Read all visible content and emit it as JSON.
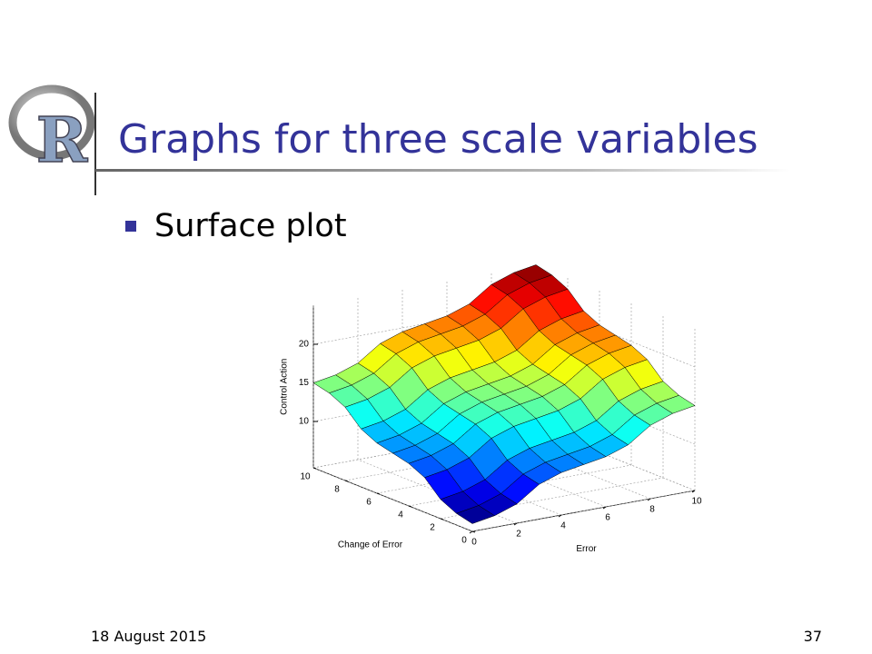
{
  "slide": {
    "logo": "R",
    "title": "Graphs for three scale variables",
    "bullets": [
      "Surface plot"
    ],
    "date": "18 August 2015",
    "page": "37"
  },
  "chart_data": {
    "type": "surface",
    "xlabel": "Error",
    "ylabel": "Change of Error",
    "zlabel": "Control Action",
    "x": [
      0,
      1,
      2,
      3,
      4,
      5,
      6,
      7,
      8,
      9,
      10
    ],
    "y": [
      0,
      1,
      2,
      3,
      4,
      5,
      6,
      7,
      8,
      9,
      10
    ],
    "z": [
      [
        5,
        5.5,
        6.5,
        8.5,
        9.5,
        10,
        10.5,
        11.5,
        13.5,
        14.5,
        15
      ],
      [
        5.5,
        6,
        7,
        9,
        10,
        10.5,
        11,
        12,
        14,
        15,
        15.5
      ],
      [
        6.5,
        7,
        8,
        10,
        11,
        11.5,
        12,
        13,
        15,
        16,
        16.5
      ],
      [
        8.5,
        9,
        10,
        12,
        13,
        13.5,
        14,
        15,
        17,
        18,
        18.5
      ],
      [
        9.5,
        10,
        11,
        13,
        14,
        14.5,
        15,
        16,
        18,
        19,
        19.5
      ],
      [
        10,
        10.5,
        11.5,
        13.5,
        14.5,
        15,
        15.5,
        16.5,
        18.5,
        19.5,
        20
      ],
      [
        10.5,
        11,
        12,
        14,
        15,
        15.5,
        16,
        17,
        19,
        20,
        20.5
      ],
      [
        11.5,
        12,
        13,
        15,
        16,
        16.5,
        17,
        18,
        20,
        21,
        21.5
      ],
      [
        13.5,
        14,
        15,
        17,
        18,
        18.5,
        19,
        20,
        22,
        23,
        23.5
      ],
      [
        14.5,
        15,
        16,
        18,
        19,
        19.5,
        20,
        21,
        23,
        24,
        24.5
      ],
      [
        15,
        15.5,
        16.5,
        18.5,
        19.5,
        20,
        20.5,
        21.5,
        23.5,
        24.5,
        25
      ]
    ],
    "xlim": [
      0,
      10
    ],
    "ylim": [
      0,
      10
    ],
    "zlim": [
      4,
      25
    ],
    "xticks": [
      0,
      2,
      4,
      6,
      8,
      10
    ],
    "yticks": [
      0,
      2,
      4,
      6,
      8,
      10
    ],
    "zticks": [
      10,
      15,
      20
    ],
    "colormap": "jet",
    "grid": true
  }
}
